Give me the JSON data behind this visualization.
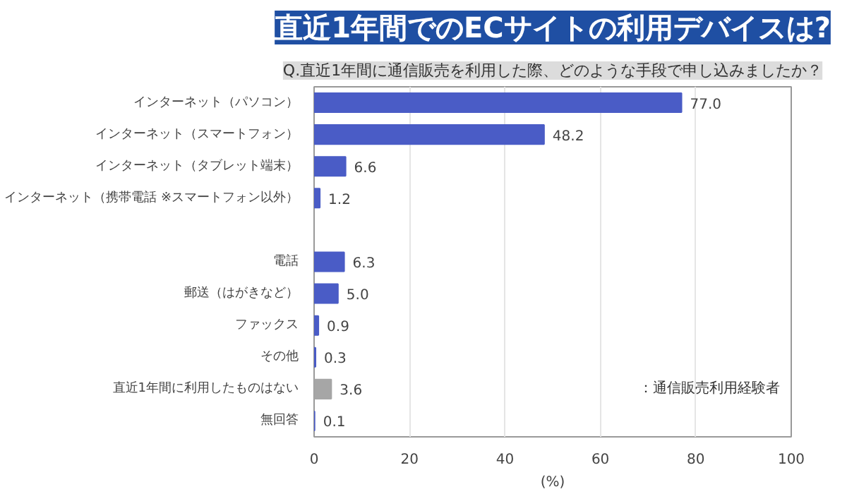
{
  "chart_data": {
    "type": "bar",
    "orientation": "horizontal",
    "title": "直近1年間でのECサイトの利用デバイスは?",
    "subtitle": "Q.直近1年間に通信販売を利用した際、どのような手段で申し込みましたか？",
    "xlabel": "(%)",
    "categories": [
      "インターネット（パソコン）",
      "インターネット（スマートフォン）",
      "インターネット（タブレット端末）",
      "インターネット（携帯電話 ※スマートフォン以外）",
      null,
      "電話",
      "郵送（はがきなど）",
      "ファックス",
      "その他",
      "直近1年間に利用したものはない",
      "無回答"
    ],
    "values": [
      77.0,
      48.2,
      6.6,
      1.2,
      null,
      6.3,
      5.0,
      0.9,
      0.3,
      3.6,
      0.1
    ],
    "colors": [
      "#4a5cc6",
      "#4a5cc6",
      "#4a5cc6",
      "#4a5cc6",
      null,
      "#4a5cc6",
      "#4a5cc6",
      "#4a5cc6",
      "#4a5cc6",
      "#a6a6a6",
      "#4a5cc6"
    ],
    "value_labels": [
      "77.0",
      "48.2",
      "6.6",
      "1.2",
      null,
      "6.3",
      "5.0",
      "0.9",
      "0.3",
      "3.6",
      "0.1"
    ],
    "xlim": [
      0,
      100
    ],
    "xticks": [
      0,
      20,
      40,
      60,
      80,
      100
    ],
    "grid": "x",
    "annotations": [
      "：通信販売利用経験者"
    ]
  }
}
